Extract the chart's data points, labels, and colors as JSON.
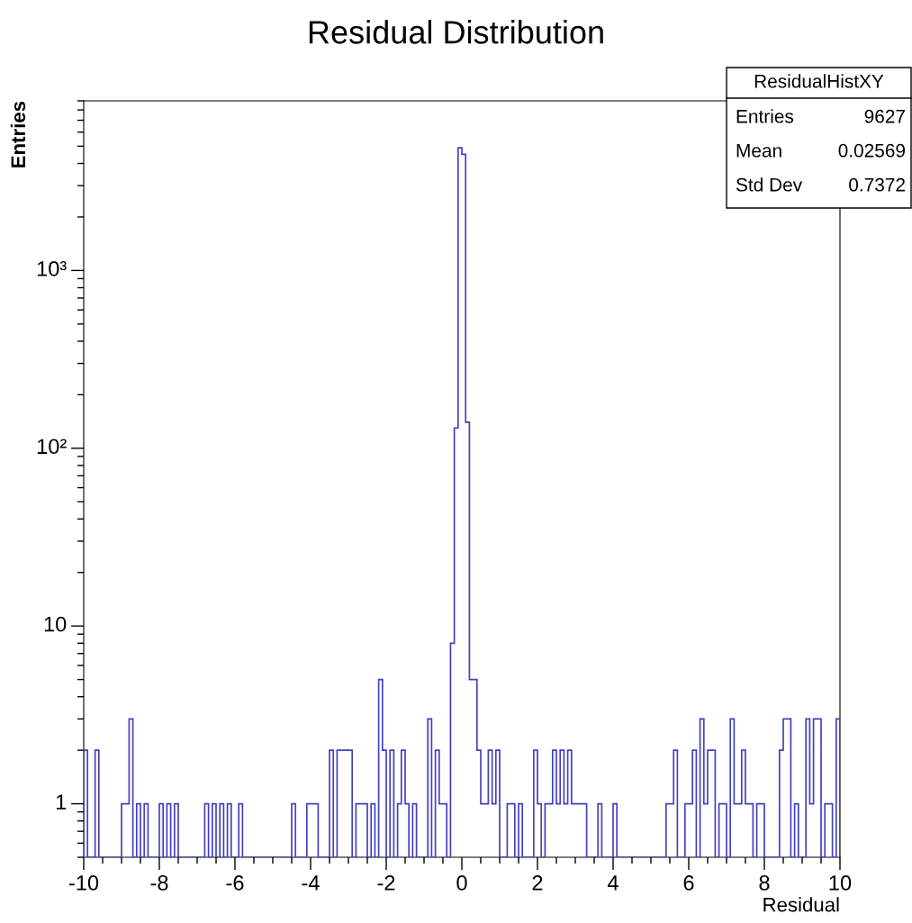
{
  "chart_data": {
    "type": "histogram",
    "title": "Residual Distribution",
    "xlabel": "Residual",
    "ylabel": "Entries",
    "color": "#4040c0",
    "log": "y",
    "grid": false,
    "legend": false,
    "xlim": [
      -10,
      10
    ],
    "xticks": [
      -10,
      -8,
      -6,
      -4,
      -2,
      0,
      2,
      4,
      6,
      8,
      10
    ],
    "ylim": [
      0.5,
      9000
    ],
    "yticks": [
      {
        "value": 0.6,
        "label": null
      },
      {
        "value": 0.7,
        "label": null
      },
      {
        "value": 0.8,
        "label": null
      },
      {
        "value": 0.9,
        "label": null
      },
      1,
      {
        "value": 2,
        "label": null
      },
      {
        "value": 3,
        "label": null
      },
      {
        "value": 4,
        "label": null
      },
      {
        "value": 5,
        "label": null
      },
      {
        "value": 6,
        "label": null
      },
      {
        "value": 7,
        "label": null
      },
      {
        "value": 8,
        "label": null
      },
      {
        "value": 9,
        "label": null
      },
      10,
      {
        "value": 20,
        "label": null
      },
      {
        "value": 30,
        "label": null
      },
      {
        "value": 40,
        "label": null
      },
      {
        "value": 50,
        "label": null
      },
      {
        "value": 60,
        "label": null
      },
      {
        "value": 70,
        "label": null
      },
      {
        "value": 80,
        "label": null
      },
      {
        "value": 90,
        "label": null
      },
      {
        "value": 100,
        "label": "10²"
      },
      {
        "value": 200,
        "label": null
      },
      {
        "value": 300,
        "label": null
      },
      {
        "value": 400,
        "label": null
      },
      {
        "value": 500,
        "label": null
      },
      {
        "value": 600,
        "label": null
      },
      {
        "value": 700,
        "label": null
      },
      {
        "value": 800,
        "label": null
      },
      {
        "value": 900,
        "label": null
      },
      {
        "value": 1000,
        "label": "10³"
      },
      {
        "value": 2000,
        "label": null
      },
      {
        "value": 3000,
        "label": null
      },
      {
        "value": 4000,
        "label": null
      },
      {
        "value": 5000,
        "label": null
      },
      {
        "value": 6000,
        "label": null
      },
      {
        "value": 7000,
        "label": null
      },
      {
        "value": 8000,
        "label": null
      },
      {
        "value": 9000,
        "label": null
      }
    ],
    "bins": [
      -10.0,
      -9.9,
      -9.8,
      -9.7,
      -9.6,
      -9.5,
      -9.4,
      -9.3,
      -9.2,
      -9.1,
      -9.0,
      -8.9,
      -8.8,
      -8.7,
      -8.6,
      -8.5,
      -8.4,
      -8.3,
      -8.2,
      -8.1,
      -8.0,
      -7.9,
      -7.8,
      -7.7,
      -7.6,
      -7.5,
      -7.4,
      -7.3,
      -7.2,
      -7.1,
      -7.0,
      -6.9,
      -6.8,
      -6.7,
      -6.6,
      -6.5,
      -6.4,
      -6.3,
      -6.2,
      -6.1,
      -6.0,
      -5.9,
      -5.8,
      -5.7,
      -5.6,
      -5.5,
      -5.4,
      -5.3,
      -5.2,
      -5.1,
      -5.0,
      -4.9,
      -4.8,
      -4.7,
      -4.6,
      -4.5,
      -4.4,
      -4.3,
      -4.2,
      -4.1,
      -4.0,
      -3.9,
      -3.8,
      -3.7,
      -3.6,
      -3.5,
      -3.4,
      -3.3,
      -3.2,
      -3.1,
      -3.0,
      -2.9,
      -2.8,
      -2.7,
      -2.6,
      -2.5,
      -2.4,
      -2.3,
      -2.2,
      -2.1,
      -2.0,
      -1.9,
      -1.8,
      -1.7,
      -1.6,
      -1.5,
      -1.4,
      -1.3,
      -1.2,
      -1.1,
      -1.0,
      -0.9,
      -0.8,
      -0.7,
      -0.6,
      -0.5,
      -0.4,
      -0.3,
      -0.2,
      -0.1,
      0.0,
      0.1,
      0.2,
      0.3,
      0.4,
      0.5,
      0.6,
      0.7,
      0.8,
      0.9,
      1.0,
      1.1,
      1.2,
      1.3,
      1.4,
      1.5,
      1.6,
      1.7,
      1.8,
      1.9,
      2.0,
      2.1,
      2.2,
      2.3,
      2.4,
      2.5,
      2.6,
      2.7,
      2.8,
      2.9,
      3.0,
      3.1,
      3.2,
      3.3,
      3.4,
      3.5,
      3.6,
      3.7,
      3.8,
      3.9,
      4.0,
      4.1,
      4.2,
      4.3,
      4.4,
      4.5,
      4.6,
      4.7,
      4.8,
      4.9,
      5.0,
      5.1,
      5.2,
      5.3,
      5.4,
      5.5,
      5.6,
      5.7,
      5.8,
      5.9,
      6.0,
      6.1,
      6.2,
      6.3,
      6.4,
      6.5,
      6.6,
      6.7,
      6.8,
      6.9,
      7.0,
      7.1,
      7.2,
      7.3,
      7.4,
      7.5,
      7.6,
      7.7,
      7.8,
      7.9,
      8.0,
      8.1,
      8.2,
      8.3,
      8.4,
      8.5,
      8.6,
      8.7,
      8.8,
      8.9,
      9.0,
      9.1,
      9.2,
      9.3,
      9.4,
      9.5,
      9.6,
      9.7,
      9.8,
      9.9,
      10.0
    ],
    "values": [
      2,
      null,
      null,
      2,
      null,
      null,
      null,
      null,
      null,
      null,
      1,
      1,
      3,
      null,
      1,
      null,
      1,
      null,
      null,
      null,
      1,
      null,
      1,
      null,
      1,
      null,
      null,
      null,
      null,
      null,
      null,
      null,
      1,
      null,
      1,
      null,
      1,
      null,
      1,
      null,
      null,
      1,
      null,
      null,
      null,
      null,
      null,
      null,
      null,
      null,
      null,
      null,
      null,
      null,
      null,
      1,
      null,
      null,
      null,
      1,
      1,
      1,
      null,
      null,
      null,
      2,
      null,
      2,
      2,
      2,
      2,
      null,
      1,
      1,
      1,
      null,
      1,
      null,
      5,
      2,
      null,
      2,
      null,
      1,
      2,
      1,
      null,
      1,
      null,
      null,
      null,
      3,
      null,
      2,
      1,
      1,
      null,
      8,
      130,
      4900,
      4500,
      140,
      5,
      5,
      2,
      1,
      1,
      2,
      1,
      2,
      null,
      null,
      1,
      1,
      null,
      1,
      null,
      null,
      null,
      2,
      1,
      null,
      1,
      1,
      2,
      1,
      2,
      1,
      2,
      1,
      1,
      1,
      1,
      null,
      null,
      null,
      1,
      null,
      null,
      null,
      1,
      null,
      null,
      null,
      null,
      null,
      null,
      null,
      null,
      null,
      null,
      null,
      null,
      null,
      1,
      1,
      2,
      null,
      null,
      1,
      1,
      2,
      null,
      3,
      1,
      2,
      2,
      null,
      1,
      1,
      null,
      3,
      1,
      1,
      2,
      1,
      1,
      null,
      1,
      1,
      null,
      null,
      null,
      null,
      2,
      3,
      3,
      null,
      1,
      null,
      null,
      3,
      1,
      3,
      3,
      null,
      1,
      1,
      null,
      3
    ],
    "annotations": [
      "ResidualHistXY",
      "Entries",
      "9627",
      "Mean",
      "0.02569",
      "Std Dev",
      "0.7372"
    ]
  }
}
